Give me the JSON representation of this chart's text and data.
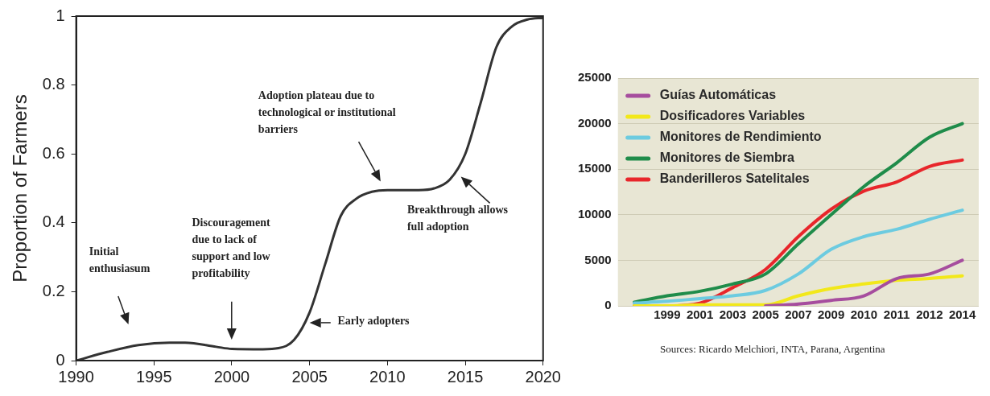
{
  "chart_data": [
    {
      "type": "line",
      "ylabel": "Proportion of Farmers",
      "x": [
        1990,
        1992,
        1994,
        1996,
        1997,
        1999,
        2000,
        2002,
        2003,
        2004,
        2005,
        2006,
        2007,
        2008,
        2009,
        2010,
        2012,
        2013,
        2014,
        2015,
        2016,
        2017,
        2018,
        2019,
        2020
      ],
      "series": [
        {
          "color": "#333333",
          "values": [
            0,
            0.025,
            0.045,
            0.052,
            0.052,
            0.04,
            0.034,
            0.033,
            0.036,
            0.06,
            0.14,
            0.28,
            0.42,
            0.47,
            0.49,
            0.495,
            0.495,
            0.5,
            0.525,
            0.6,
            0.75,
            0.91,
            0.97,
            0.99,
            0.995
          ]
        }
      ],
      "xlim": [
        1990,
        2020
      ],
      "xticks": [
        1990,
        1995,
        2000,
        2005,
        2010,
        2015,
        2020
      ],
      "ylim": [
        0,
        1
      ],
      "yticks": [
        0,
        0.2,
        0.4,
        0.6,
        0.8,
        1
      ],
      "grid": false,
      "legend": false,
      "marker": "none",
      "line_style": "solid",
      "annotations": [
        "Initial\nenthusiasum",
        "Discouragement\ndue to lack of\nsupport and low\nprofitability",
        {
          "text": "Early adopters",
          "x": 2005,
          "y": 0.11
        },
        "Adoption plateau due to\ntechnological or institutional\nbarriers",
        "Breakthrough allows\nfull adoption"
      ]
    },
    {
      "type": "line",
      "categories": [
        null,
        "1999",
        "2001",
        "2003",
        "2005",
        "2007",
        "2009",
        "2010",
        "2011",
        "2012",
        "2014"
      ],
      "series": [
        {
          "name": "Guías Automáticas",
          "color": "#a64d9e",
          "values": [
            null,
            null,
            null,
            null,
            0,
            200,
            600,
            1100,
            3000,
            3500,
            5000
          ]
        },
        {
          "name": "Dosificadores Variables",
          "color": "#f2e81a",
          "values": [
            0,
            0,
            100,
            100,
            100,
            1100,
            1900,
            2400,
            2800,
            3000,
            3300
          ]
        },
        {
          "name": "Monitores de Rendimiento",
          "color": "#6ccbe0",
          "values": [
            300,
            500,
            800,
            1100,
            1700,
            3500,
            6200,
            7600,
            8400,
            9500,
            10500
          ]
        },
        {
          "name": "Monitores de Siembra",
          "color": "#1f8c4a",
          "values": [
            400,
            1100,
            1600,
            2400,
            3500,
            6800,
            10000,
            13100,
            15700,
            18500,
            20000
          ]
        },
        {
          "name": "Banderilleros Satelitales",
          "color": "#e8262b",
          "values": [
            0,
            0,
            300,
            2000,
            4000,
            7600,
            10600,
            12600,
            13600,
            15300,
            16000
          ]
        }
      ],
      "ylim": [
        0,
        25000
      ],
      "yticks": [
        0,
        5000,
        10000,
        15000,
        20000,
        25000
      ],
      "grid": "y",
      "legend": "top left",
      "marker": "none",
      "line_style": "solid",
      "annotations": [
        "Sources: Ricardo Melchiori, INTA, Parana, Argentina"
      ]
    }
  ]
}
